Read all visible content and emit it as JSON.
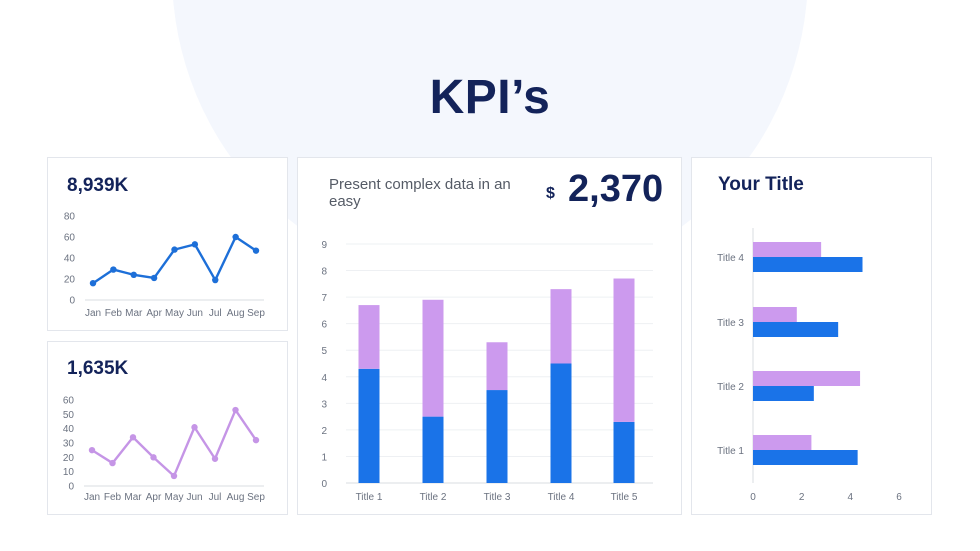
{
  "page": {
    "title": "KPI’s"
  },
  "card_line1": {
    "kpi": "8,939K"
  },
  "card_line2": {
    "kpi": "1,635K"
  },
  "card_bar": {
    "text": "Present complex data in an easy",
    "currency": "$",
    "value": "2,370"
  },
  "card_hbar": {
    "title": "Your Title"
  },
  "colors": {
    "blue": "#1a73e8",
    "purple": "#cc9aee",
    "navy": "#13235a",
    "line1": "#1d6fd8",
    "line2": "#c595e6"
  },
  "chart_data": [
    {
      "type": "line",
      "categories": [
        "Jan",
        "Feb",
        "Mar",
        "Apr",
        "May",
        "Jun",
        "Jul",
        "Aug",
        "Sep"
      ],
      "series": [
        {
          "values": [
            16,
            29,
            24,
            21,
            48,
            53,
            19,
            60,
            47
          ]
        }
      ],
      "ylim": [
        0,
        80
      ],
      "yticks": [
        0,
        20,
        40,
        60,
        80
      ]
    },
    {
      "type": "line",
      "categories": [
        "Jan",
        "Feb",
        "Mar",
        "Apr",
        "May",
        "Jun",
        "Jul",
        "Aug",
        "Sep"
      ],
      "series": [
        {
          "values": [
            25,
            16,
            34,
            20,
            7,
            41,
            19,
            53,
            32
          ]
        }
      ],
      "ylim": [
        0,
        60
      ],
      "yticks": [
        0,
        10,
        20,
        30,
        40,
        50,
        60
      ]
    },
    {
      "type": "bar",
      "stacked": true,
      "categories": [
        "Title 1",
        "Title 2",
        "Title 3",
        "Title 4",
        "Title 5"
      ],
      "series": [
        {
          "values": [
            4.3,
            2.5,
            3.5,
            4.5,
            2.3
          ]
        },
        {
          "values": [
            2.4,
            4.4,
            1.8,
            2.8,
            5.4
          ]
        }
      ],
      "ylim": [
        0,
        9
      ],
      "yticks": [
        0,
        1,
        2,
        3,
        4,
        5,
        6,
        7,
        8,
        9
      ]
    },
    {
      "type": "bar",
      "orientation": "horizontal",
      "categories": [
        "Title 1",
        "Title 2",
        "Title 3",
        "Title 4"
      ],
      "series": [
        {
          "values": [
            4.3,
            2.5,
            3.5,
            4.5
          ]
        },
        {
          "values": [
            2.4,
            4.4,
            1.8,
            2.8
          ]
        }
      ],
      "xlim": [
        0,
        6
      ],
      "xticks": [
        0,
        2,
        4,
        6
      ]
    }
  ]
}
